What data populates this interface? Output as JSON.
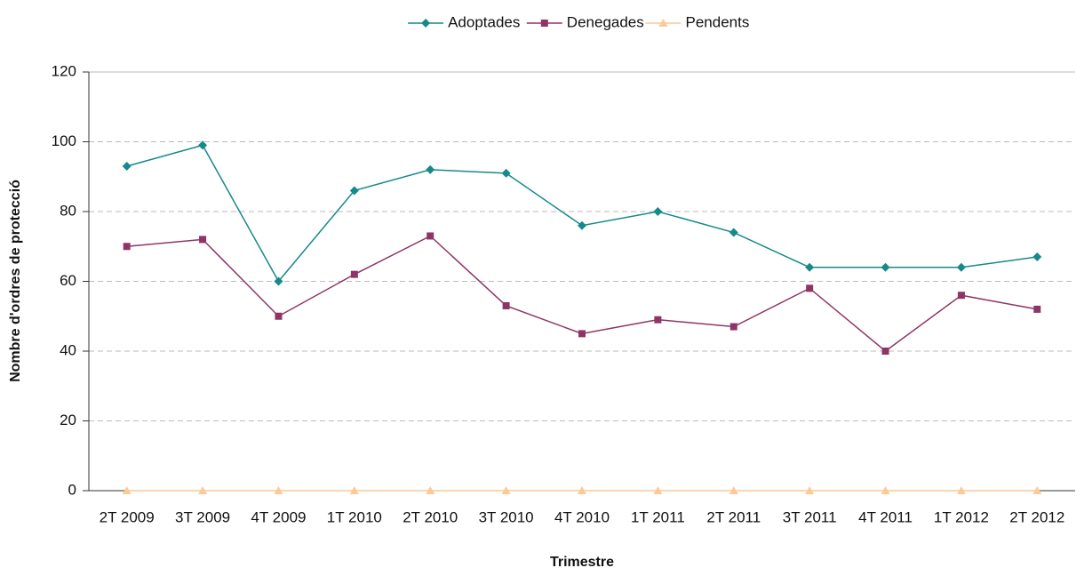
{
  "chart_data": {
    "type": "line",
    "x_label": "Trimestre",
    "y_label": "Nombre d'ordres de protecció",
    "categories": [
      "2T 2009",
      "3T 2009",
      "4T 2009",
      "1T 2010",
      "2T 2010",
      "3T 2010",
      "4T 2010",
      "1T 2011",
      "2T 2011",
      "3T 2011",
      "4T 2011",
      "1T 2012",
      "2T 2012"
    ],
    "series": [
      {
        "name": "Adoptades",
        "color": "#17898a",
        "marker": "diamond",
        "values": [
          93,
          99,
          60,
          86,
          92,
          91,
          76,
          80,
          74,
          64,
          64,
          64,
          67
        ]
      },
      {
        "name": "Denegades",
        "color": "#8f3565",
        "marker": "square",
        "values": [
          70,
          72,
          50,
          62,
          73,
          53,
          45,
          49,
          47,
          58,
          40,
          56,
          52
        ]
      },
      {
        "name": "Pendents",
        "color": "#fcc997",
        "marker": "triangle",
        "values": [
          0,
          0,
          0,
          0,
          0,
          0,
          0,
          0,
          0,
          0,
          0,
          0,
          0
        ]
      }
    ],
    "ylim": [
      0,
      120
    ],
    "yticks": [
      0,
      20,
      40,
      60,
      80,
      100,
      120
    ],
    "grid": true,
    "legend": "top"
  }
}
